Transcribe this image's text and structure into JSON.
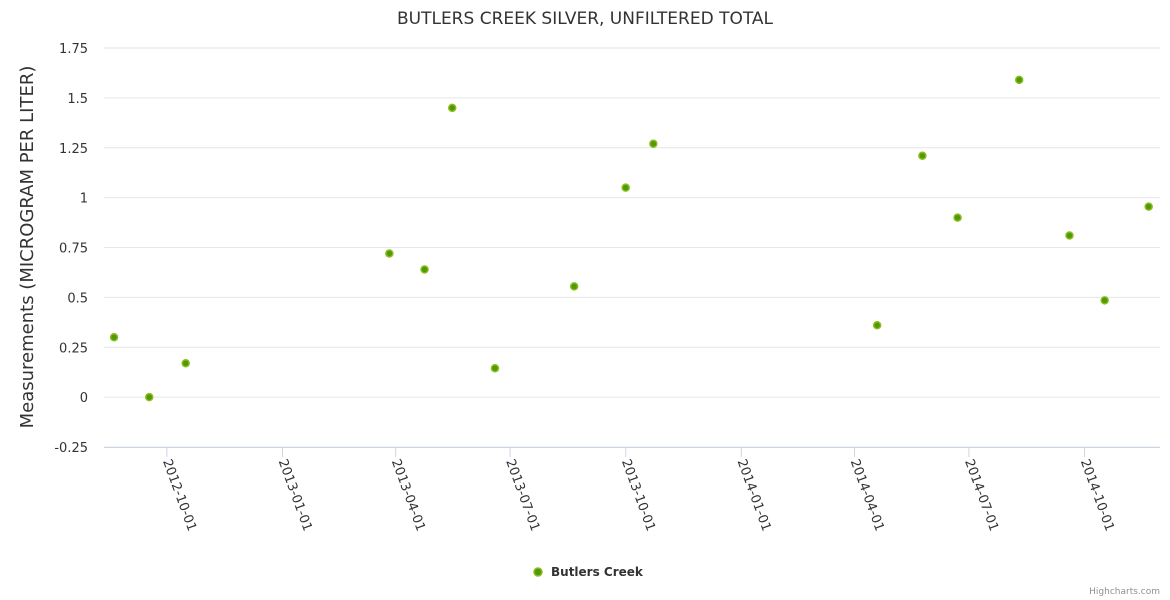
{
  "chart_data": {
    "type": "scatter",
    "title": "BUTLERS CREEK SILVER, UNFILTERED TOTAL",
    "xlabel": "",
    "ylabel": "Measurements (MICROGRAM PER LITER)",
    "ylim": [
      -0.25,
      1.75
    ],
    "xlim": [
      "2012-08-12",
      "2014-11-30"
    ],
    "yticks": [
      "-0.25",
      "0",
      "0.25",
      "0.5",
      "0.75",
      "1",
      "1.25",
      "1.5",
      "1.75"
    ],
    "xticks": [
      "2012-10-01",
      "2013-01-01",
      "2013-04-01",
      "2013-07-01",
      "2013-10-01",
      "2014-01-01",
      "2014-04-01",
      "2014-07-01",
      "2014-10-01"
    ],
    "grid": true,
    "legend_position": "bottom-center",
    "series": [
      {
        "name": "Butlers Creek",
        "color": "#8bbc21",
        "fill": "#4f9a00",
        "points": [
          [
            "2012-08-20",
            0.3
          ],
          [
            "2012-09-17",
            0.0
          ],
          [
            "2012-10-16",
            0.17
          ],
          [
            "2013-03-27",
            0.72
          ],
          [
            "2013-04-24",
            0.64
          ],
          [
            "2013-05-16",
            1.45
          ],
          [
            "2013-06-19",
            0.145
          ],
          [
            "2013-08-21",
            0.555
          ],
          [
            "2013-10-01",
            1.05
          ],
          [
            "2013-10-23",
            1.27
          ],
          [
            "2014-04-19",
            0.36
          ],
          [
            "2014-05-25",
            1.21
          ],
          [
            "2014-06-22",
            0.9
          ],
          [
            "2014-08-10",
            1.59
          ],
          [
            "2014-09-19",
            0.81
          ],
          [
            "2014-10-17",
            0.485
          ],
          [
            "2014-11-21",
            0.955
          ]
        ]
      }
    ]
  },
  "credit": "Highcharts.com"
}
